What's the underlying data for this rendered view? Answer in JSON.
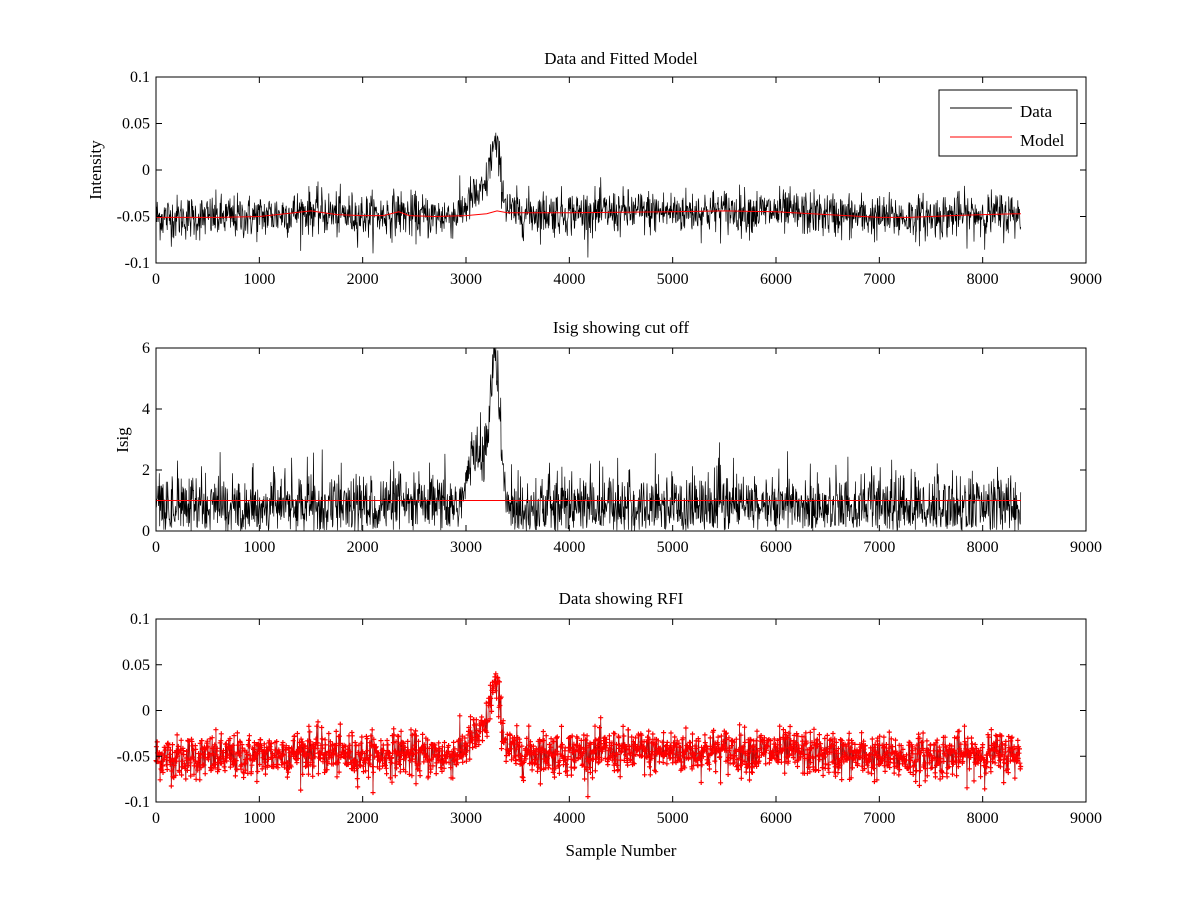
{
  "figure": {
    "background": "#ffffff"
  },
  "chart_data": [
    {
      "type": "line",
      "title": "Data and Fitted Model",
      "xlabel": "",
      "ylabel": "Intensity",
      "xlim": [
        0,
        9000
      ],
      "ylim": [
        -0.1,
        0.1
      ],
      "xticks": [
        0,
        1000,
        2000,
        3000,
        4000,
        5000,
        6000,
        7000,
        8000,
        9000
      ],
      "yticks": [
        -0.1,
        -0.05,
        0,
        0.05,
        0.1
      ],
      "ytick_labels": [
        "-0.1",
        "-0.05",
        "0",
        "0.05",
        "0.1"
      ],
      "grid": false,
      "legend": {
        "position": "top-right",
        "entries": [
          {
            "name": "Data",
            "color": "#000000"
          },
          {
            "name": "Model",
            "color": "#ff0000"
          }
        ]
      },
      "series": [
        {
          "name": "Data",
          "color": "#000000",
          "kind": "noisy",
          "samples": 8370,
          "baseline": "Model",
          "noise_std": 0.012,
          "peak": {
            "center": 3280,
            "width": 55,
            "amplitude": 0.068
          },
          "bump": {
            "center": 3100,
            "width": 90,
            "amplitude": 0.02
          }
        },
        {
          "name": "Model",
          "color": "#ff0000",
          "kind": "line",
          "x": [
            0,
            600,
            1000,
            1250,
            1500,
            1750,
            2000,
            2200,
            2350,
            2450,
            2700,
            3000,
            3200,
            3300,
            3400,
            3700,
            4000,
            5000,
            5500,
            6000,
            6500,
            7000,
            7300,
            7500,
            7700,
            8000,
            8370
          ],
          "y": [
            -0.051,
            -0.051,
            -0.05,
            -0.047,
            -0.044,
            -0.048,
            -0.049,
            -0.049,
            -0.045,
            -0.049,
            -0.05,
            -0.049,
            -0.047,
            -0.044,
            -0.046,
            -0.046,
            -0.046,
            -0.045,
            -0.044,
            -0.045,
            -0.048,
            -0.051,
            -0.051,
            -0.05,
            -0.049,
            -0.048,
            -0.047
          ]
        }
      ]
    },
    {
      "type": "line",
      "title": "Isig showing cut off",
      "xlabel": "",
      "ylabel": "Isig",
      "xlim": [
        0,
        9000
      ],
      "ylim": [
        0,
        6
      ],
      "xticks": [
        0,
        1000,
        2000,
        3000,
        4000,
        5000,
        6000,
        7000,
        8000,
        9000
      ],
      "yticks": [
        0,
        2,
        4,
        6
      ],
      "ytick_labels": [
        "0",
        "2",
        "4",
        "6"
      ],
      "grid": false,
      "series": [
        {
          "name": "Isig",
          "color": "#000000",
          "kind": "noisy",
          "samples": 8370,
          "mean": 0.8,
          "spread": 0.55,
          "peak": {
            "center": 3280,
            "width": 45,
            "amplitude": 4.8
          },
          "bump": {
            "center": 3110,
            "width": 80,
            "amplitude": 1.8
          }
        },
        {
          "name": "cut off",
          "color": "#ff0000",
          "kind": "line",
          "x": [
            0,
            8370
          ],
          "y": [
            1,
            1
          ]
        }
      ]
    },
    {
      "type": "scatter",
      "title": "Data showing RFI",
      "xlabel": "Sample Number",
      "ylabel": "",
      "xlim": [
        0,
        9000
      ],
      "ylim": [
        -0.1,
        0.1
      ],
      "xticks": [
        0,
        1000,
        2000,
        3000,
        4000,
        5000,
        6000,
        7000,
        8000,
        9000
      ],
      "yticks": [
        -0.1,
        -0.05,
        0,
        0.05,
        0.1
      ],
      "ytick_labels": [
        "-0.1",
        "-0.05",
        "0",
        "0.05",
        "0.1"
      ],
      "grid": false,
      "series": [
        {
          "name": "Data",
          "color": "#000000",
          "kind": "noisy-line",
          "samples": 8370
        },
        {
          "name": "RFI",
          "color": "#ff0000",
          "kind": "markers",
          "marker": "+",
          "samples": 1100
        }
      ]
    }
  ]
}
